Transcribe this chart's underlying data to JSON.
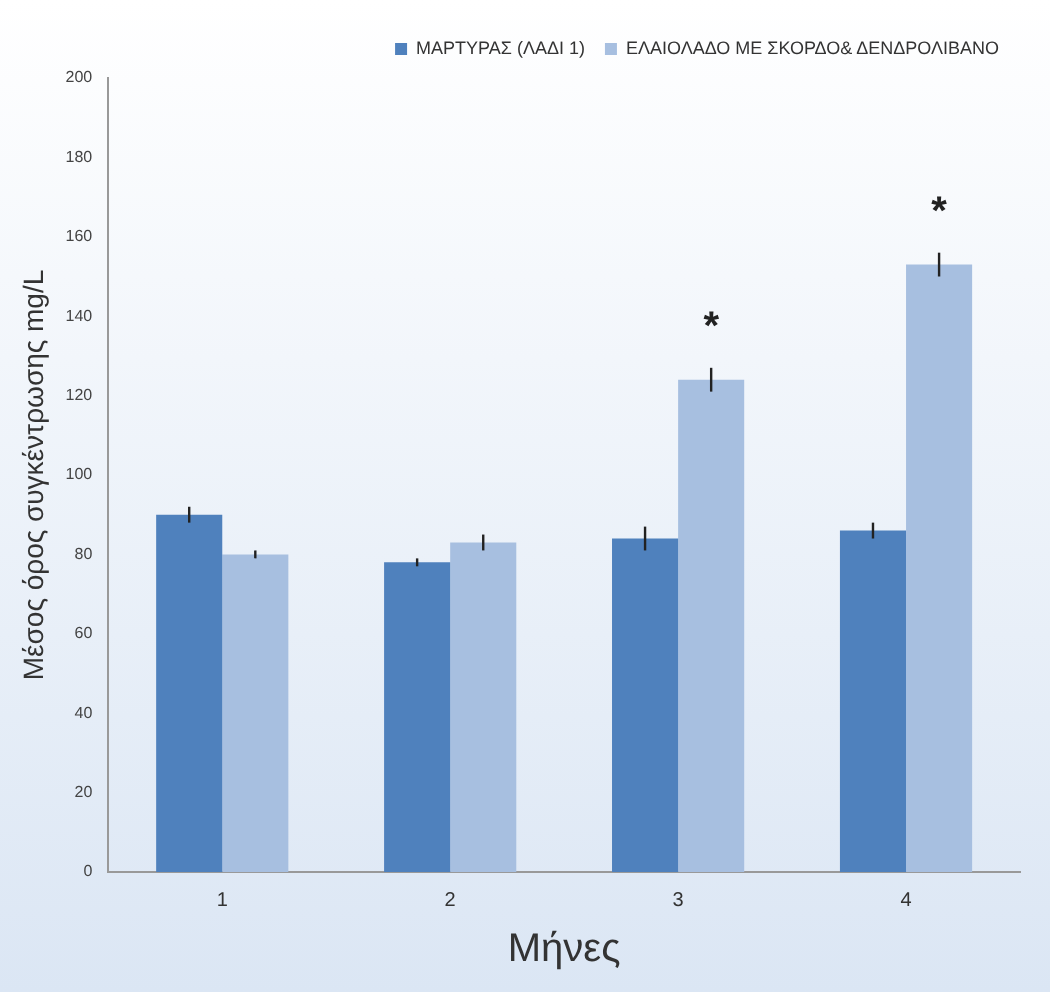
{
  "chart_data": {
    "type": "bar",
    "ylabel": "Μέσος όρος συγκέντρωσης mg/L",
    "xlabel": "Μήνες",
    "categories": [
      "1",
      "2",
      "3",
      "4"
    ],
    "series": [
      {
        "name": "ΜΑΡΤΥΡΑΣ (ΛΑΔΙ 1)",
        "color": "#4f81bd",
        "values": [
          90,
          78,
          84,
          86
        ],
        "errors": [
          2,
          1,
          3,
          2
        ]
      },
      {
        "name": "ΕΛΑΙΟΛΑΔΟ ΜΕ ΣΚΟΡΔΟ& ΔΕΝΔΡΟΛΙΒΑΝΟ",
        "color": "#a7bfe0",
        "values": [
          80,
          83,
          124,
          153
        ],
        "errors": [
          1,
          2,
          3,
          3
        ]
      }
    ],
    "annotations": [
      {
        "text": "*",
        "x": "3",
        "y": 124
      },
      {
        "text": "*",
        "x": "4",
        "y": 153
      }
    ],
    "ylim": [
      0,
      200
    ],
    "yticks": [
      0,
      20,
      40,
      60,
      80,
      100,
      120,
      140,
      160,
      180,
      200
    ],
    "grid": false,
    "legend": "top right"
  }
}
